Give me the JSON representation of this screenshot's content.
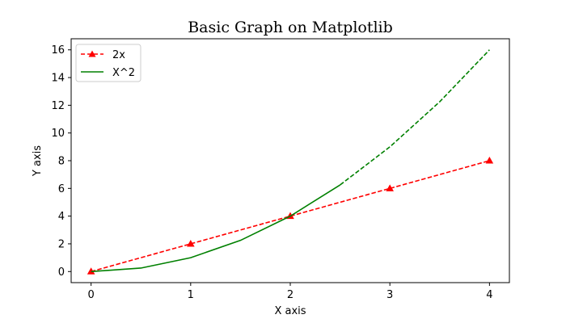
{
  "chart_data": {
    "type": "line",
    "title": "Basic Graph on Matplotlib",
    "xlabel": "X axis",
    "ylabel": "Y axis",
    "xlim": [
      -0.2,
      4.2
    ],
    "ylim": [
      -0.8,
      16.8
    ],
    "x_ticks": [
      0,
      1,
      2,
      3,
      4
    ],
    "y_ticks": [
      0,
      2,
      4,
      6,
      8,
      10,
      12,
      14,
      16
    ],
    "grid": false,
    "legend_position": "top-left",
    "series": [
      {
        "name": "2x",
        "color": "#ff0000",
        "line_style": "dashed",
        "marker": "triangle",
        "x": [
          0,
          1,
          2,
          3,
          4
        ],
        "y": [
          0,
          2,
          4,
          6,
          8
        ]
      },
      {
        "name": "X^2",
        "color": "#008000",
        "line_style": "solid",
        "marker": "none",
        "x": [
          0,
          0.5,
          1,
          1.5,
          2,
          2.5
        ],
        "y": [
          0,
          0.25,
          1,
          2.25,
          4,
          6.25
        ]
      },
      {
        "color": "#008000",
        "line_style": "dashed",
        "marker": "none",
        "x": [
          2.5,
          3,
          3.5,
          4
        ],
        "y": [
          6.25,
          9,
          12.25,
          16
        ]
      }
    ]
  }
}
